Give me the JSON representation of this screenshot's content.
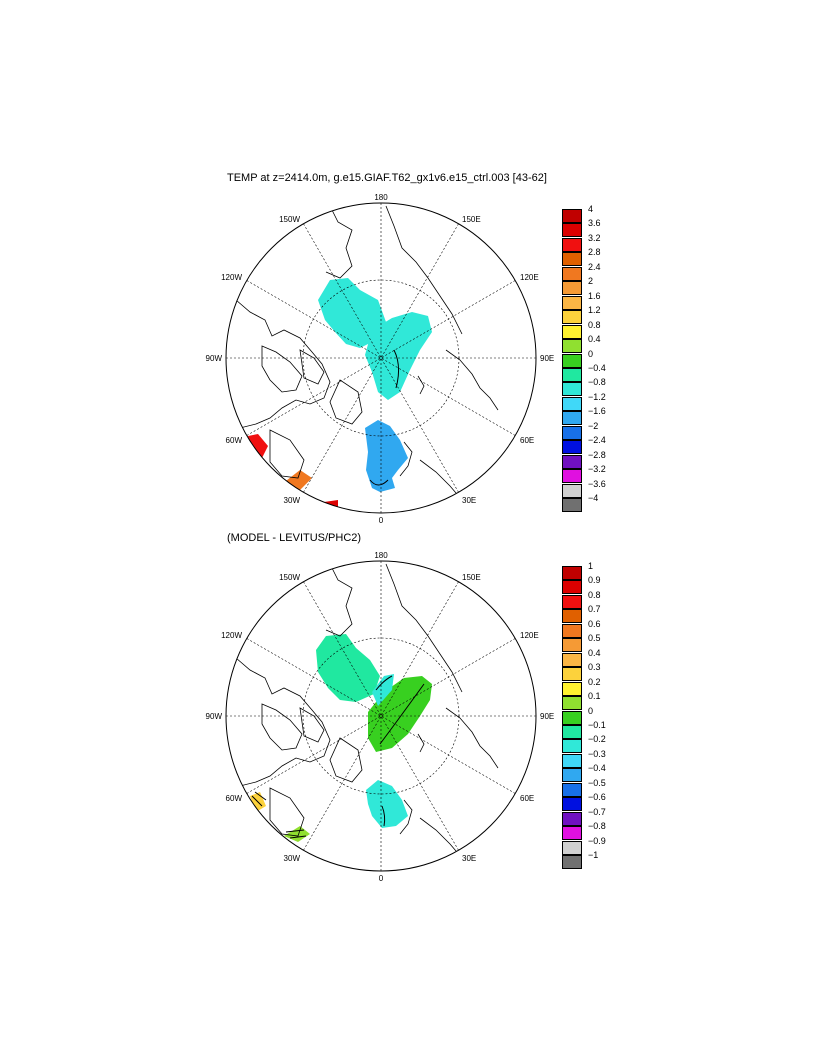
{
  "panels": [
    {
      "title": "TEMP at z=2414.0m, g.e15.GIAF.T62_gx1v6.e15_ctrl.003 [43-62]",
      "lon_labels": {
        "top": "180",
        "bottom": "0",
        "left": "90W",
        "right": "90E",
        "ul1": "150W",
        "ul2": "120W",
        "ur1": "150E",
        "ur2": "120E",
        "ll1": "60W",
        "ll2": "30W",
        "lr1": "60E",
        "lr2": "30E"
      },
      "legend": {
        "colors": [
          "#c00000",
          "#dc0000",
          "#f01010",
          "#e06000",
          "#f07820",
          "#f59a35",
          "#fbb645",
          "#fcd23c",
          "#fff230",
          "#90e030",
          "#38d020",
          "#20e8a0",
          "#30e8d8",
          "#40d8f8",
          "#30a8f0",
          "#1870e8",
          "#0010e0",
          "#7010c0",
          "#e010e0",
          "#d0d0d0",
          "#707070"
        ],
        "ticks": [
          "4",
          "3.6",
          "3.2",
          "2.8",
          "2.4",
          "2",
          "1.6",
          "1.2",
          "0.8",
          "0.4",
          "0",
          "−0.4",
          "−0.8",
          "−1.2",
          "−1.6",
          "−2",
          "−2.4",
          "−2.8",
          "−3.2",
          "−3.6",
          "−4"
        ]
      }
    },
    {
      "title": "(MODEL - LEVITUS/PHC2)",
      "lon_labels": {
        "top": "180",
        "bottom": "0",
        "left": "90W",
        "right": "90E",
        "ul1": "150W",
        "ul2": "120W",
        "ur1": "150E",
        "ur2": "120E",
        "ll1": "60W",
        "ll2": "30W",
        "lr1": "60E",
        "lr2": "30E"
      },
      "legend": {
        "colors": [
          "#c00000",
          "#dc0000",
          "#f01010",
          "#e06000",
          "#f07820",
          "#f59a35",
          "#fbb645",
          "#fcd23c",
          "#fff230",
          "#90e030",
          "#38d020",
          "#20e8a0",
          "#30e8d8",
          "#40d8f8",
          "#30a8f0",
          "#1870e8",
          "#0010e0",
          "#7010c0",
          "#e010e0",
          "#d0d0d0",
          "#707070"
        ],
        "ticks": [
          "1",
          "0.9",
          "0.8",
          "0.7",
          "0.6",
          "0.5",
          "0.4",
          "0.3",
          "0.2",
          "0.1",
          "0",
          "−0.1",
          "−0.2",
          "−0.3",
          "−0.4",
          "−0.5",
          "−0.6",
          "−0.7",
          "−0.8",
          "−0.9",
          "−1"
        ]
      }
    }
  ]
}
